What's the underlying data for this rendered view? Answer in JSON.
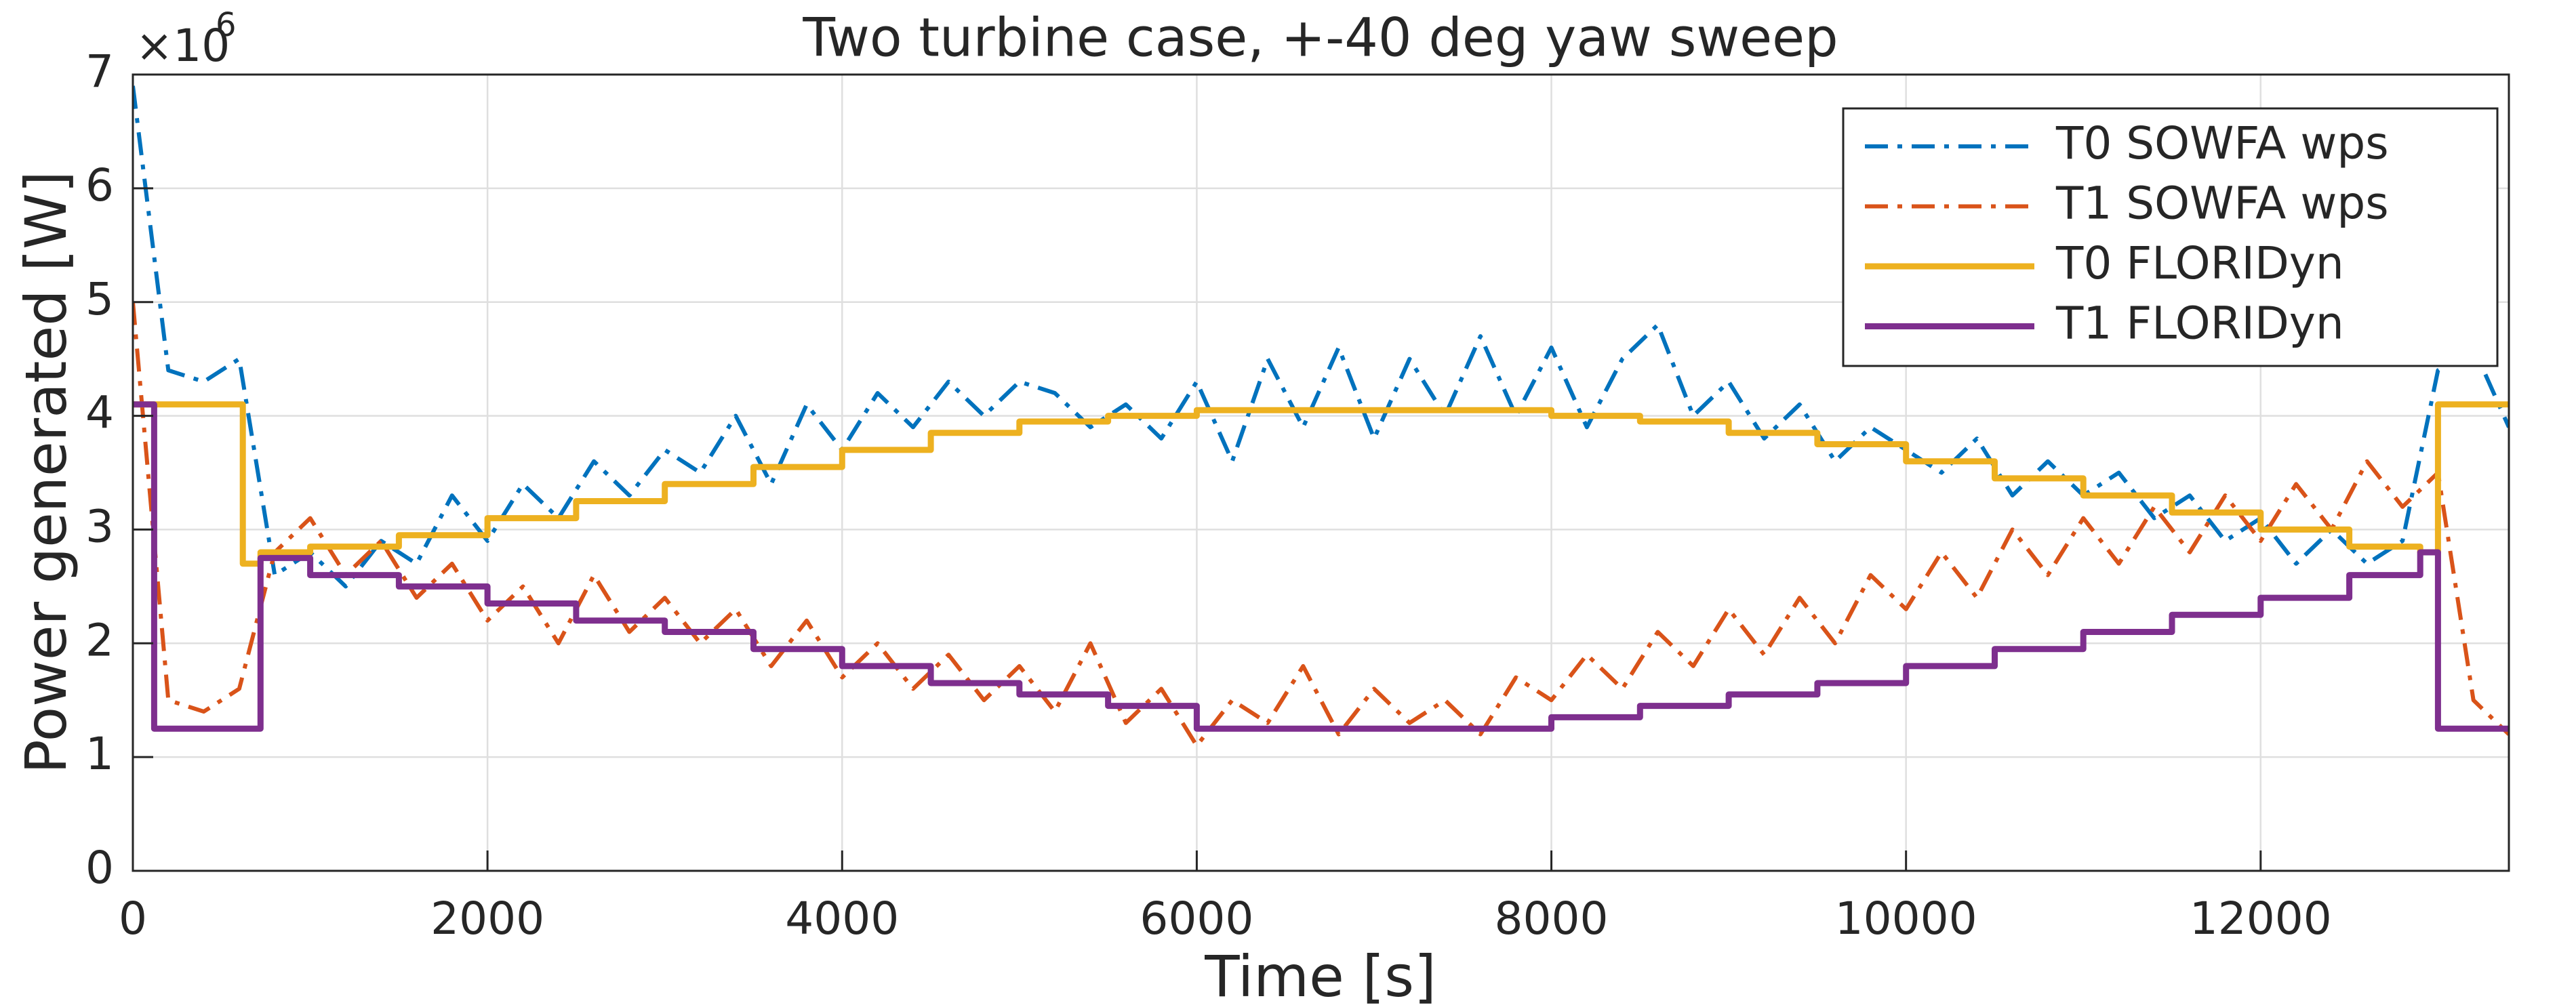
{
  "chart_data": {
    "type": "line",
    "title": "Two turbine case, +-40 deg yaw sweep",
    "x_label": "Time [s]",
    "y_label": "Power generated [W]",
    "y_multiplier_base": "×10",
    "y_multiplier_exponent": "6",
    "xlim": [
      0,
      13400
    ],
    "xticks": [
      0,
      2000,
      4000,
      6000,
      8000,
      10000,
      12000
    ],
    "ylim": [
      0,
      7000000.0
    ],
    "yticks": [
      {
        "value": 0,
        "label": "0"
      },
      {
        "value": 1000000.0,
        "label": "1"
      },
      {
        "value": 2000000.0,
        "label": "2"
      },
      {
        "value": 3000000.0,
        "label": "3"
      },
      {
        "value": 4000000.0,
        "label": "4"
      },
      {
        "value": 5000000.0,
        "label": "5"
      },
      {
        "value": 6000000.0,
        "label": "6"
      },
      {
        "value": 7000000.0,
        "label": "7"
      }
    ],
    "grid": true,
    "legend": "upper right",
    "x": [
      0,
      200,
      400,
      600,
      800,
      1000,
      1200,
      1400,
      1600,
      1800,
      2000,
      2200,
      2400,
      2600,
      2800,
      3000,
      3200,
      3400,
      3600,
      3800,
      4000,
      4200,
      4400,
      4600,
      4800,
      5000,
      5200,
      5400,
      5600,
      5800,
      6000,
      6200,
      6400,
      6600,
      6800,
      7000,
      7200,
      7400,
      7600,
      7800,
      8000,
      8200,
      8400,
      8600,
      8800,
      9000,
      9200,
      9400,
      9600,
      9800,
      10000,
      10200,
      10400,
      10600,
      10800,
      11000,
      11200,
      11400,
      11600,
      11800,
      12000,
      12200,
      12400,
      12600,
      12800,
      13000,
      13200,
      13400
    ],
    "series": [
      {
        "name": "T0 SOWFA wps",
        "color": "#0072BD",
        "line_style": "dashdot",
        "values": [
          6900000.0,
          4400000.0,
          4300000.0,
          4500000.0,
          2600000.0,
          2800000.0,
          2500000.0,
          2900000.0,
          2700000.0,
          3300000.0,
          2900000.0,
          3400000.0,
          3100000.0,
          3600000.0,
          3300000.0,
          3700000.0,
          3500000.0,
          4000000.0,
          3400000.0,
          4100000.0,
          3700000.0,
          4200000.0,
          3900000.0,
          4300000.0,
          4000000.0,
          4300000.0,
          4200000.0,
          3900000.0,
          4100000.0,
          3800000.0,
          4300000.0,
          3600000.0,
          4500000.0,
          3900000.0,
          4600000.0,
          3800000.0,
          4500000.0,
          4000000.0,
          4700000.0,
          4000000.0,
          4600000.0,
          3900000.0,
          4500000.0,
          4800000.0,
          4000000.0,
          4300000.0,
          3800000.0,
          4100000.0,
          3600000.0,
          3900000.0,
          3700000.0,
          3500000.0,
          3800000.0,
          3300000.0,
          3600000.0,
          3300000.0,
          3500000.0,
          3100000.0,
          3300000.0,
          2900000.0,
          3100000.0,
          2700000.0,
          3000000.0,
          2700000.0,
          2900000.0,
          4400000.0,
          4600000.0,
          3900000.0
        ]
      },
      {
        "name": "T1 SOWFA wps",
        "color": "#D95319",
        "line_style": "dashdot",
        "values": [
          5000000.0,
          1500000.0,
          1400000.0,
          1600000.0,
          2800000.0,
          3100000.0,
          2600000.0,
          2900000.0,
          2400000.0,
          2700000.0,
          2200000.0,
          2500000.0,
          2000000.0,
          2600000.0,
          2100000.0,
          2400000.0,
          2000000.0,
          2300000.0,
          1800000.0,
          2200000.0,
          1700000.0,
          2000000.0,
          1600000.0,
          1900000.0,
          1500000.0,
          1800000.0,
          1400000.0,
          2000000.0,
          1300000.0,
          1600000.0,
          1100000.0,
          1500000.0,
          1300000.0,
          1800000.0,
          1200000.0,
          1600000.0,
          1300000.0,
          1500000.0,
          1200000.0,
          1700000.0,
          1500000.0,
          1900000.0,
          1600000.0,
          2100000.0,
          1800000.0,
          2300000.0,
          1900000.0,
          2400000.0,
          2000000.0,
          2600000.0,
          2300000.0,
          2800000.0,
          2400000.0,
          3000000.0,
          2600000.0,
          3100000.0,
          2700000.0,
          3200000.0,
          2800000.0,
          3300000.0,
          2900000.0,
          3400000.0,
          3000000.0,
          3600000.0,
          3200000.0,
          3500000.0,
          1500000.0,
          1200000.0
        ]
      },
      {
        "name": "T0 FLORIDyn",
        "color": "#EDB120",
        "line_style": "solid",
        "x": [
          0,
          620,
          620,
          720,
          720,
          1000,
          1000,
          1500,
          1500,
          2000,
          2000,
          2500,
          2500,
          3000,
          3000,
          3500,
          3500,
          4000,
          4000,
          4500,
          4500,
          5000,
          5000,
          5500,
          5500,
          6000,
          6000,
          8000,
          8000,
          8500,
          8500,
          9000,
          9000,
          9500,
          9500,
          10000,
          10000,
          10500,
          10500,
          11000,
          11000,
          11500,
          11500,
          12000,
          12000,
          12500,
          12500,
          12900,
          12900,
          13000,
          13000,
          13400
        ],
        "values": [
          4100000.0,
          4100000.0,
          2700000.0,
          2700000.0,
          2800000.0,
          2800000.0,
          2850000.0,
          2850000.0,
          2950000.0,
          2950000.0,
          3100000.0,
          3100000.0,
          3250000.0,
          3250000.0,
          3400000.0,
          3400000.0,
          3550000.0,
          3550000.0,
          3700000.0,
          3700000.0,
          3850000.0,
          3850000.0,
          3950000.0,
          3950000.0,
          4000000.0,
          4000000.0,
          4050000.0,
          4050000.0,
          4000000.0,
          4000000.0,
          3950000.0,
          3950000.0,
          3850000.0,
          3850000.0,
          3750000.0,
          3750000.0,
          3600000.0,
          3600000.0,
          3450000.0,
          3450000.0,
          3300000.0,
          3300000.0,
          3150000.0,
          3150000.0,
          3000000.0,
          3000000.0,
          2850000.0,
          2850000.0,
          2800000.0,
          2800000.0,
          4100000.0,
          4100000.0
        ]
      },
      {
        "name": "T1 FLORIDyn",
        "color": "#7E2F8E",
        "line_style": "solid",
        "x": [
          0,
          120,
          120,
          720,
          720,
          1000,
          1000,
          1500,
          1500,
          2000,
          2000,
          2500,
          2500,
          3000,
          3000,
          3500,
          3500,
          4000,
          4000,
          4500,
          4500,
          5000,
          5000,
          5500,
          5500,
          6000,
          6000,
          8000,
          8000,
          8500,
          8500,
          9000,
          9000,
          9500,
          9500,
          10000,
          10000,
          10500,
          10500,
          11000,
          11000,
          11500,
          11500,
          12000,
          12000,
          12500,
          12500,
          12900,
          12900,
          13000,
          13000,
          13400
        ],
        "values": [
          4100000.0,
          4100000.0,
          1250000.0,
          1250000.0,
          2750000.0,
          2750000.0,
          2600000.0,
          2600000.0,
          2500000.0,
          2500000.0,
          2350000.0,
          2350000.0,
          2200000.0,
          2200000.0,
          2100000.0,
          2100000.0,
          1950000.0,
          1950000.0,
          1800000.0,
          1800000.0,
          1650000.0,
          1650000.0,
          1550000.0,
          1550000.0,
          1450000.0,
          1450000.0,
          1250000.0,
          1250000.0,
          1350000.0,
          1350000.0,
          1450000.0,
          1450000.0,
          1550000.0,
          1550000.0,
          1650000.0,
          1650000.0,
          1800000.0,
          1800000.0,
          1950000.0,
          1950000.0,
          2100000.0,
          2100000.0,
          2250000.0,
          2250000.0,
          2400000.0,
          2400000.0,
          2600000.0,
          2600000.0,
          2800000.0,
          2800000.0,
          1250000.0,
          1250000.0
        ]
      }
    ]
  }
}
